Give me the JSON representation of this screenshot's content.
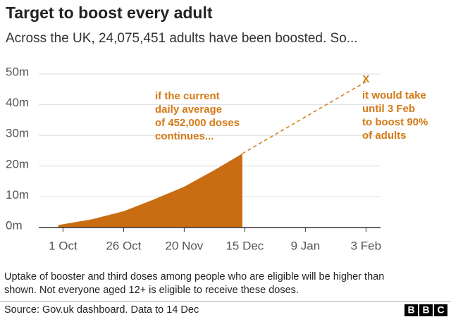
{
  "chart_data": {
    "type": "area",
    "title": "Target to boost every adult",
    "subtitle": "Across the UK, 24,075,451 adults have been boosted. So...",
    "x": [
      272,
      286,
      299,
      311,
      324,
      336,
      348
    ],
    "values": [
      0.8,
      2.7,
      5.3,
      9,
      13.3,
      18.5,
      24.08
    ],
    "color": "#c96d12",
    "projection": {
      "x": [
        348,
        399
      ],
      "values": [
        24.08,
        47.5
      ],
      "color": "#d47a16"
    },
    "marker": "X",
    "annotations": [
      [
        "if the current",
        "daily average",
        "of 452,000 doses",
        "continues..."
      ],
      [
        "it would take",
        "until  3 Feb",
        "to boost 90%",
        "of adults"
      ]
    ],
    "xlim": [
      264,
      405
    ],
    "xticks": [
      {
        "value": 274,
        "label": "1 Oct"
      },
      {
        "value": 299,
        "label": "26 Oct"
      },
      {
        "value": 324,
        "label": "20 Nov"
      },
      {
        "value": 349,
        "label": "15 Dec"
      },
      {
        "value": 374,
        "label": "9 Jan"
      },
      {
        "value": 399,
        "label": "3 Feb"
      }
    ],
    "ylim": [
      0,
      50
    ],
    "yticks": [
      {
        "value": 0,
        "label": "0m"
      },
      {
        "value": 10,
        "label": "10m"
      },
      {
        "value": 20,
        "label": "20m"
      },
      {
        "value": 30,
        "label": "30m"
      },
      {
        "value": 40,
        "label": "40m"
      },
      {
        "value": 50,
        "label": "50m"
      }
    ],
    "grid": true,
    "footnote": [
      "Uptake of booster and third doses among people who are eligible will be higher than",
      "shown. Not everyone aged 12+ is eligible to receive these doses."
    ],
    "source": "Source: Gov.uk dashboard. Data to 14 Dec",
    "logo": [
      "B",
      "B",
      "C"
    ]
  }
}
